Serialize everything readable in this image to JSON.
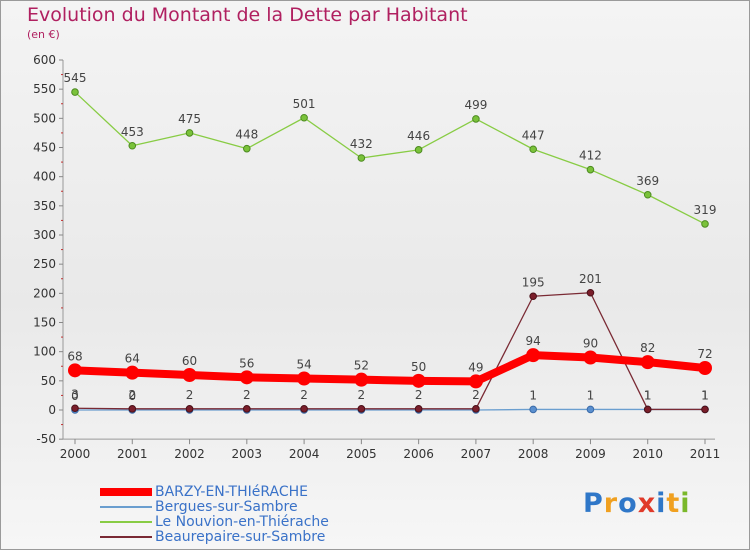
{
  "title": "Evolution du Montant de la Dette par Habitant",
  "subtitle": "(en €)",
  "logo": {
    "text": "Proxiti",
    "colors": [
      "#2f77c8",
      "#f0a020",
      "#2f77c8",
      "#e03a2a",
      "#2f77c8",
      "#f0a020",
      "#7ab82a"
    ]
  },
  "chart_data": {
    "type": "line",
    "title": "Evolution du Montant de la Dette par Habitant",
    "subtitle": "(en €)",
    "xlabel": "",
    "ylabel": "",
    "ylim": [
      -50,
      600
    ],
    "yticks": [
      -50,
      0,
      50,
      100,
      150,
      200,
      250,
      300,
      350,
      400,
      450,
      500,
      550,
      600
    ],
    "grid": false,
    "legend_position": "bottom-left",
    "categories": [
      "2000",
      "2001",
      "2002",
      "2003",
      "2004",
      "2005",
      "2006",
      "2007",
      "2008",
      "2009",
      "2010",
      "2011"
    ],
    "series": [
      {
        "name": "BARZY-EN-THIéRACHE",
        "color": "#ff0000",
        "values": [
          68,
          64,
          60,
          56,
          54,
          52,
          50,
          49,
          94,
          90,
          82,
          72
        ],
        "labels": [
          "68",
          "64",
          "60",
          "56",
          "54",
          "52",
          "50",
          "49",
          "94",
          "90",
          "82",
          "72"
        ]
      },
      {
        "name": "Bergues-sur-Sambre",
        "color": "#6a9ecf",
        "values": [
          0,
          0,
          0,
          0,
          0,
          0,
          0,
          0,
          1,
          1,
          1,
          1
        ],
        "labels": [
          "0",
          "0",
          "",
          "",
          "",
          "",
          "",
          "",
          "1",
          "1",
          "1",
          "1"
        ]
      },
      {
        "name": "Le Nouvion-en-Thiérache",
        "color": "#88cc44",
        "values": [
          545,
          453,
          475,
          448,
          501,
          432,
          446,
          499,
          447,
          412,
          369,
          319
        ],
        "labels": [
          "545",
          "453",
          "475",
          "448",
          "501",
          "432",
          "446",
          "499",
          "447",
          "412",
          "369",
          "319"
        ]
      },
      {
        "name": "Beaurepaire-sur-Sambre",
        "color": "#7a2a34",
        "values": [
          3,
          2,
          2,
          2,
          2,
          2,
          2,
          2,
          195,
          201,
          1,
          1
        ],
        "labels": [
          "3",
          "2",
          "2",
          "2",
          "2",
          "2",
          "2",
          "2",
          "195",
          "201",
          "1",
          "1"
        ]
      }
    ]
  }
}
